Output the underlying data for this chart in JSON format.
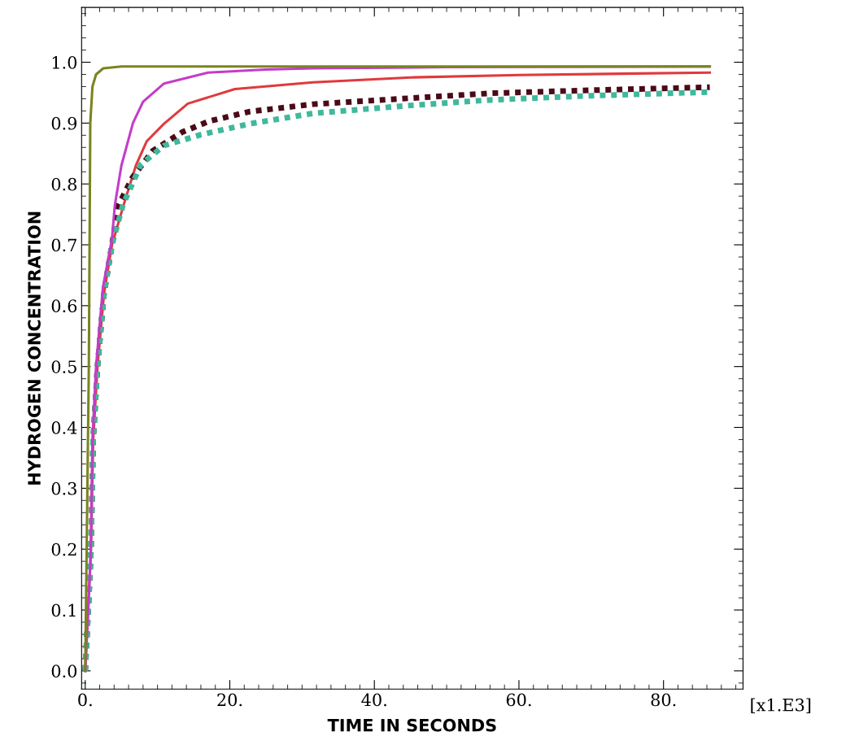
{
  "chart_data": {
    "type": "line",
    "xlabel": "TIME IN SECONDS",
    "ylabel": "HYDROGEN CONCENTRATION",
    "annotations": [
      "[x1.E3]"
    ],
    "xlim": [
      -0.5,
      91
    ],
    "ylim": [
      -0.03,
      1.09
    ],
    "xticks": [
      {
        "value": 0,
        "label": "0."
      },
      {
        "value": 20,
        "label": "20."
      },
      {
        "value": 40,
        "label": "40."
      },
      {
        "value": 60,
        "label": "60."
      },
      {
        "value": 80,
        "label": "80."
      }
    ],
    "yticks": [
      {
        "value": 0,
        "label": "0.0"
      },
      {
        "value": 0.1,
        "label": "0.1"
      },
      {
        "value": 0.2,
        "label": "0.2"
      },
      {
        "value": 0.3,
        "label": "0.3"
      },
      {
        "value": 0.4,
        "label": "0.4"
      },
      {
        "value": 0.5,
        "label": "0.5"
      },
      {
        "value": 0.6,
        "label": "0.6"
      },
      {
        "value": 0.7,
        "label": "0.7"
      },
      {
        "value": 0.8,
        "label": "0.8"
      },
      {
        "value": 0.9,
        "label": "0.9"
      },
      {
        "value": 1.0,
        "label": "1.0"
      }
    ],
    "grid": false,
    "marker": "none",
    "series": [
      {
        "color": "#e03a3e",
        "line_style": "solid",
        "x": [
          0,
          0.5,
          0.8,
          1.1,
          1.7,
          2.6,
          3.7,
          5.3,
          7,
          8.5,
          10.9,
          14.2,
          20.7,
          31.5,
          45,
          60,
          86.4
        ],
        "values": [
          0,
          0.12,
          0.2,
          0.38,
          0.5,
          0.62,
          0.7,
          0.765,
          0.83,
          0.87,
          0.899,
          0.932,
          0.956,
          0.967,
          0.975,
          0.979,
          0.983
        ]
      },
      {
        "color": "#4a0a18",
        "line_style": "dotted",
        "x": [
          0,
          0.5,
          0.8,
          1.1,
          1.7,
          2.6,
          3.7,
          4.6,
          6.5,
          9.3,
          13.4,
          17.1,
          22.8,
          31.5,
          45,
          56,
          70,
          86.4
        ],
        "values": [
          0,
          0.12,
          0.2,
          0.38,
          0.5,
          0.62,
          0.7,
          0.765,
          0.81,
          0.854,
          0.885,
          0.903,
          0.919,
          0.931,
          0.941,
          0.949,
          0.954,
          0.959
        ]
      },
      {
        "color": "#40b89c",
        "line_style": "dotted",
        "x": [
          0,
          0.5,
          0.8,
          1.1,
          1.7,
          2.6,
          3.7,
          5.2,
          7.7,
          10.9,
          16,
          22.8,
          31.5,
          45,
          56,
          70,
          86.4
        ],
        "values": [
          0,
          0.12,
          0.2,
          0.38,
          0.5,
          0.62,
          0.7,
          0.765,
          0.832,
          0.863,
          0.881,
          0.899,
          0.916,
          0.929,
          0.938,
          0.945,
          0.951
        ]
      },
      {
        "color": "#c43cc8",
        "line_style": "solid",
        "x": [
          0,
          0.4,
          0.75,
          1.0,
          1.5,
          2.45,
          3.7,
          4.1,
          5,
          6.6,
          8,
          10.9,
          17,
          25,
          31.5,
          50,
          86.4
        ],
        "values": [
          0,
          0.1,
          0.19,
          0.38,
          0.5,
          0.63,
          0.71,
          0.765,
          0.83,
          0.9,
          0.935,
          0.965,
          0.983,
          0.988,
          0.99,
          0.992,
          0.993
        ]
      },
      {
        "color": "#7a8420",
        "line_style": "solid",
        "x": [
          0,
          0.5,
          0.7,
          1.0,
          1.5,
          2.5,
          5,
          86.4
        ],
        "values": [
          0,
          0.5,
          0.9,
          0.96,
          0.98,
          0.99,
          0.993,
          0.993
        ]
      }
    ]
  }
}
